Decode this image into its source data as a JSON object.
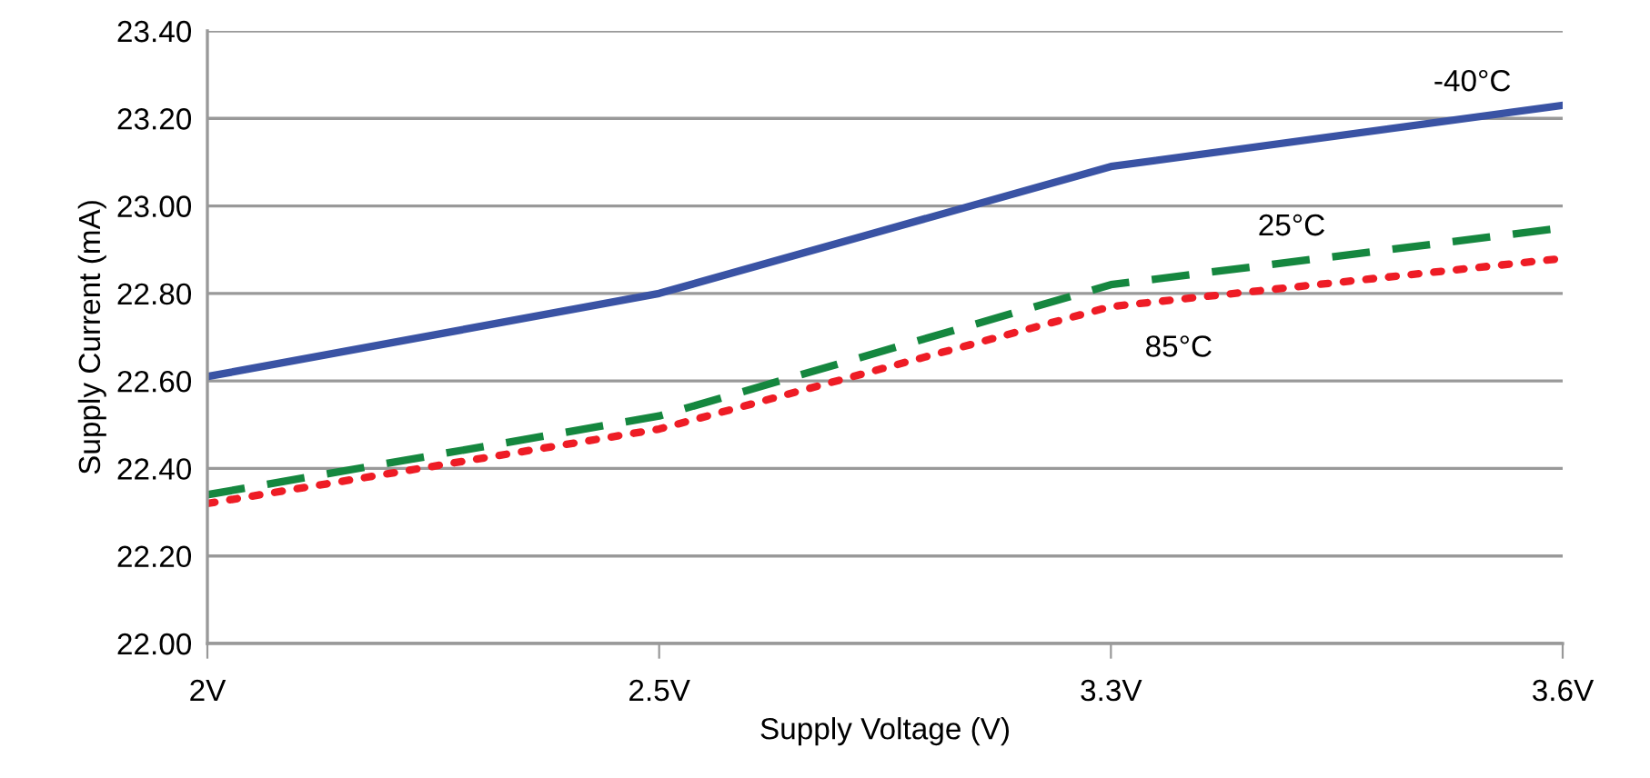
{
  "chart_data": {
    "type": "line",
    "xlabel": "Supply Voltage (V)",
    "ylabel": "Supply Current (mA)",
    "categories": [
      "2V",
      "2.5V",
      "3.3V",
      "3.6V"
    ],
    "series": [
      {
        "name": "-40°C",
        "color": "#3a53a4",
        "line_style": "solid",
        "values": [
          22.61,
          22.8,
          23.09,
          23.23
        ]
      },
      {
        "name": "25°C",
        "color": "#15873f",
        "line_style": "dashed",
        "values": [
          22.34,
          22.52,
          22.82,
          22.95
        ]
      },
      {
        "name": "85°C",
        "color": "#ee1c25",
        "line_style": "dotted",
        "values": [
          22.32,
          22.49,
          22.77,
          22.88
        ]
      }
    ],
    "ylim": [
      22.0,
      23.4
    ],
    "yticks": [
      {
        "value": 22.0,
        "label": "22.00"
      },
      {
        "value": 22.2,
        "label": "22.20"
      },
      {
        "value": 22.4,
        "label": "22.40"
      },
      {
        "value": 22.6,
        "label": "22.60"
      },
      {
        "value": 22.8,
        "label": "22.80"
      },
      {
        "value": 23.0,
        "label": "23.00"
      },
      {
        "value": 23.2,
        "label": "23.20"
      },
      {
        "value": 23.4,
        "label": "23.40"
      }
    ],
    "grid": "y",
    "legend": false,
    "marker": "none"
  }
}
